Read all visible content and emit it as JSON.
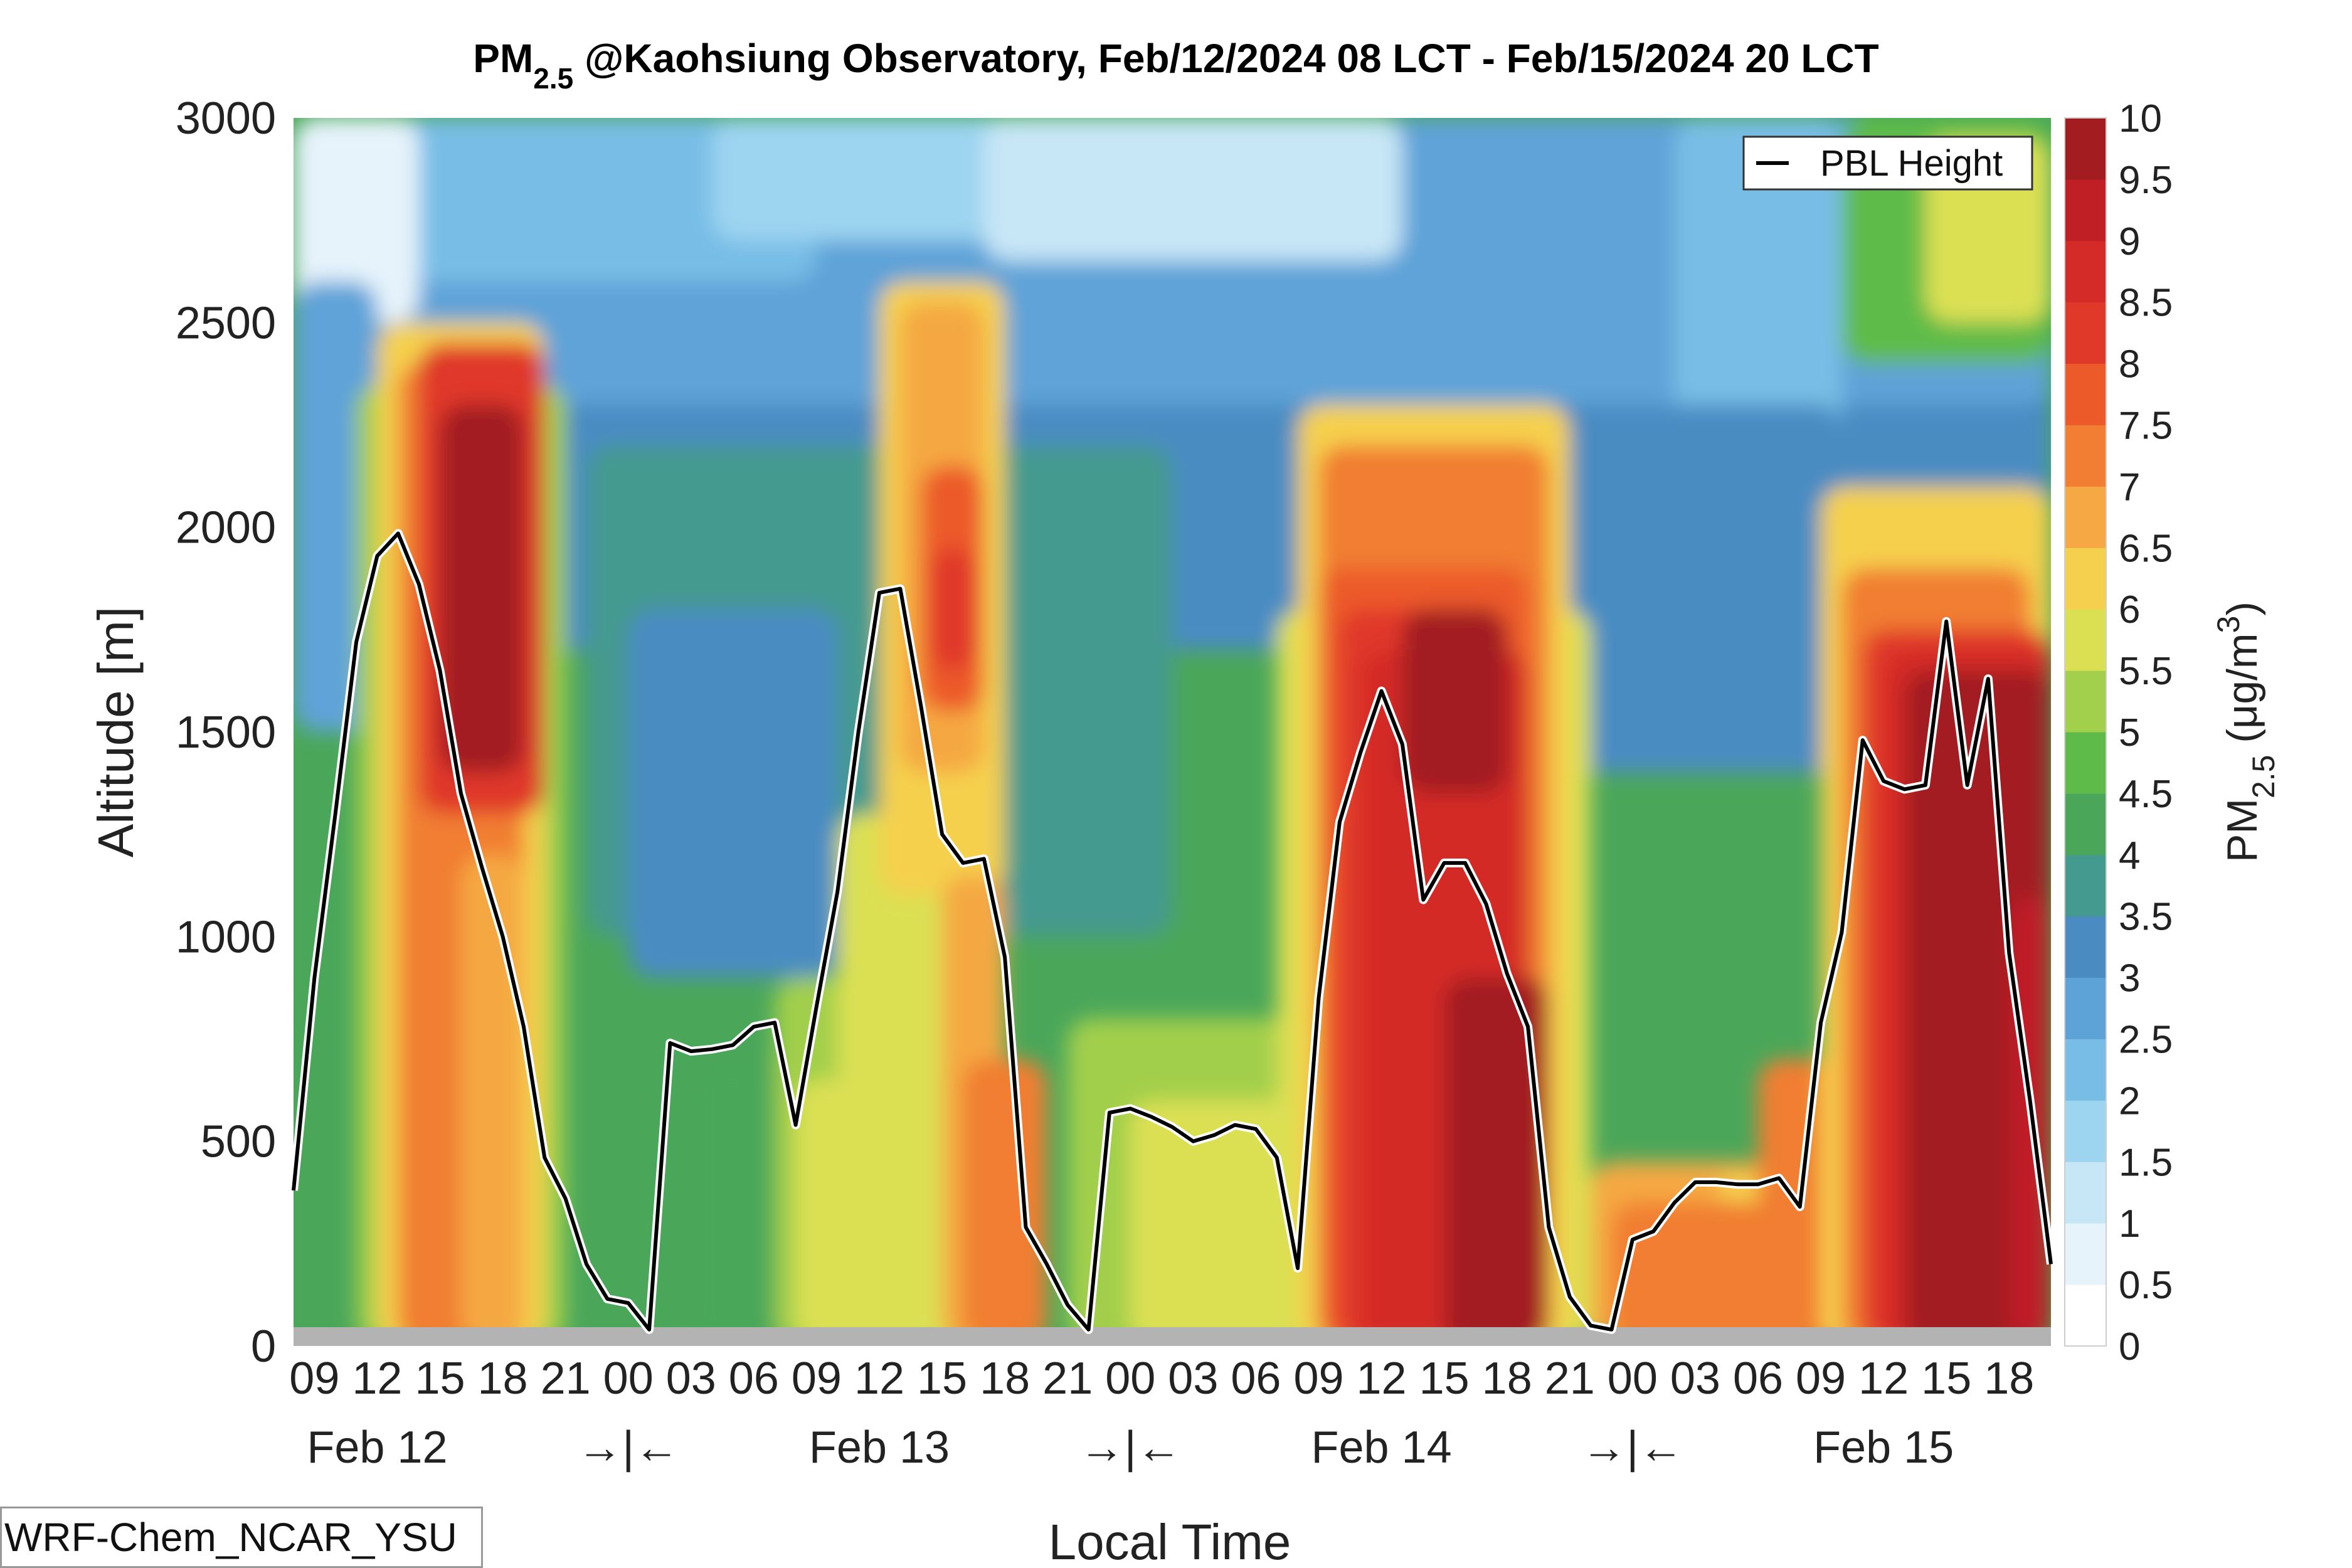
{
  "chart_data": {
    "type": "heatmap",
    "title_main": "PM",
    "title_sub": "2.5",
    "title_rest": " @Kaohsiung Observatory, Feb/12/2024 08 LCT - Feb/15/2024 20 LCT",
    "xlabel": "Local Time",
    "ylabel": "Altitude [m]",
    "ylim": [
      0,
      3000
    ],
    "y_ticks": [
      "0",
      "500",
      "1000",
      "1500",
      "2000",
      "2500",
      "3000"
    ],
    "x_hours": [
      "09",
      "12",
      "15",
      "18",
      "21",
      "00",
      "03",
      "06",
      "09",
      "12",
      "15",
      "18",
      "21",
      "00",
      "03",
      "06",
      "09",
      "12",
      "15",
      "18",
      "21",
      "00",
      "03",
      "06",
      "09",
      "12",
      "15",
      "18"
    ],
    "x_hours_offset_from_start": [
      1,
      4,
      7,
      10,
      13,
      16,
      19,
      22,
      25,
      28,
      31,
      34,
      37,
      40,
      43,
      46,
      49,
      52,
      55,
      58,
      61,
      64,
      67,
      70,
      73,
      76,
      79,
      82
    ],
    "x_days": [
      "Feb 12",
      "→|←",
      "Feb 13",
      "→|←",
      "Feb 14",
      "→|←",
      "Feb 15"
    ],
    "x_days_offset": [
      4,
      16,
      28,
      40,
      52,
      64,
      76
    ],
    "x_range_hours": [
      0,
      84
    ],
    "colorbar": {
      "label_main": "PM",
      "label_sub": "2.5",
      "label_rest": " (μg/m",
      "label_sup": "3",
      "label_end": ")",
      "ticks": [
        "0",
        "0.5",
        "1",
        "1.5",
        "2",
        "2.5",
        "3",
        "3.5",
        "4",
        "4.5",
        "5",
        "5.5",
        "6",
        "6.5",
        "7",
        "7.5",
        "8",
        "8.5",
        "9",
        "9.5",
        "10"
      ],
      "colors": [
        "#ffffff",
        "#e6f3fb",
        "#c7e6f6",
        "#9dd4f0",
        "#78bde6",
        "#5ea3d8",
        "#4a8cc2",
        "#459a8f",
        "#4aa75a",
        "#5ebb4a",
        "#a2cf4c",
        "#dbe052",
        "#f5d04e",
        "#f5a843",
        "#f17e33",
        "#ec5a2a",
        "#e0392a",
        "#d42a28",
        "#bf1f25",
        "#a21c20"
      ]
    },
    "legend": {
      "label": "PBL Height",
      "position": "top-right"
    },
    "series": [
      {
        "name": "PBL Height",
        "x_hours": [
          0,
          1,
          2,
          3,
          4,
          5,
          6,
          7,
          8,
          9,
          10,
          11,
          12,
          13,
          14,
          15,
          16,
          17,
          18,
          19,
          20,
          21,
          22,
          23,
          24,
          25,
          26,
          27,
          28,
          29,
          30,
          31,
          32,
          33,
          34,
          35,
          36,
          37,
          38,
          39,
          40,
          41,
          42,
          43,
          44,
          45,
          46,
          47,
          48,
          49,
          50,
          51,
          52,
          53,
          54,
          55,
          56,
          57,
          58,
          59,
          60,
          61,
          62,
          63,
          64,
          65,
          66,
          67,
          68,
          69,
          70,
          71,
          72,
          73,
          74,
          75,
          76,
          77,
          78,
          79,
          80,
          81,
          82,
          83,
          84
        ],
        "values": [
          380,
          900,
          1300,
          1720,
          1930,
          1985,
          1860,
          1650,
          1350,
          1170,
          1000,
          780,
          460,
          360,
          200,
          115,
          105,
          40,
          740,
          720,
          725,
          735,
          780,
          790,
          540,
          830,
          1110,
          1500,
          1840,
          1850,
          1560,
          1250,
          1180,
          1190,
          950,
          290,
          200,
          100,
          40,
          570,
          580,
          560,
          535,
          500,
          515,
          540,
          530,
          460,
          190,
          850,
          1280,
          1450,
          1600,
          1470,
          1090,
          1180,
          1180,
          1080,
          910,
          780,
          290,
          120,
          50,
          40,
          260,
          280,
          350,
          400,
          400,
          395,
          395,
          410,
          340,
          790,
          1010,
          1480,
          1380,
          1360,
          1370,
          1770,
          1370,
          1630,
          960,
          600,
          200
        ]
      }
    ],
    "footer": "WRF-Chem_NCAR_YSU"
  }
}
